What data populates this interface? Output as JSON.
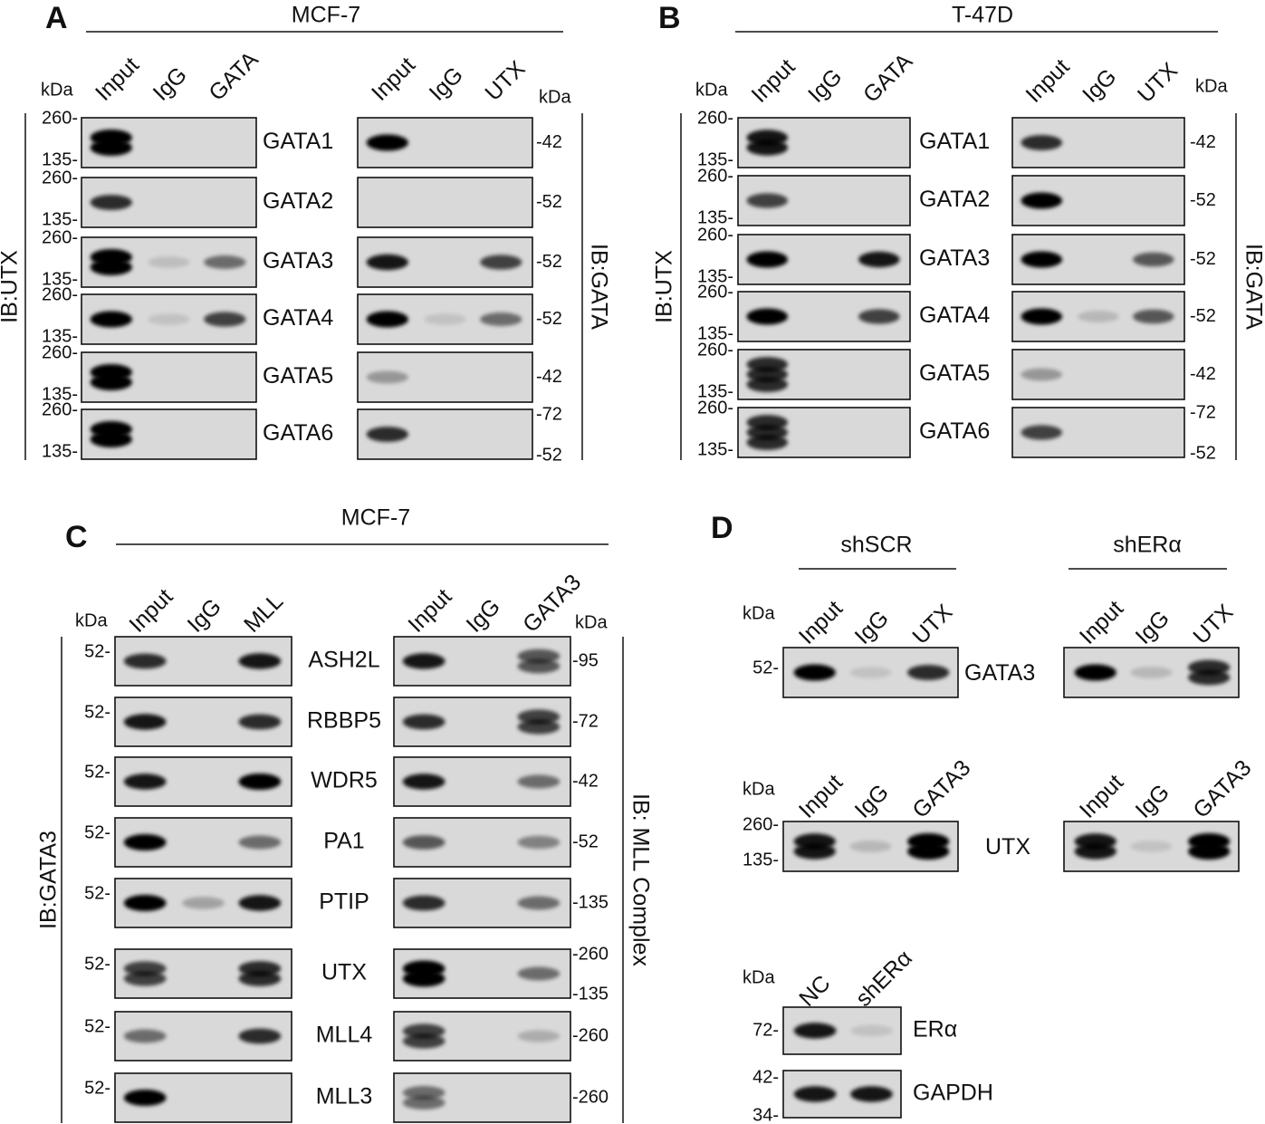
{
  "panels": [
    {
      "letter": "A",
      "title": "MCF-7",
      "kda": [
        "kDa",
        "kDa"
      ],
      "left_ib": "IB:UTX",
      "right_ib": "IB:GATA",
      "left_lanes": [
        "Input",
        "IgG",
        "GATA"
      ],
      "right_lanes": [
        "Input",
        "IgG",
        "UTX"
      ],
      "rows": [
        {
          "label": "GATA1",
          "left_markers": [
            "260-",
            "135-"
          ],
          "right_markers": [
            "-42"
          ]
        },
        {
          "label": "GATA2",
          "left_markers": [
            "260-",
            "135-"
          ],
          "right_markers": [
            "-52"
          ]
        },
        {
          "label": "GATA3",
          "left_markers": [
            "260-",
            "135-"
          ],
          "right_markers": [
            "-52"
          ]
        },
        {
          "label": "GATA4",
          "left_markers": [
            "260-",
            "135-"
          ],
          "right_markers": [
            "-52"
          ]
        },
        {
          "label": "GATA5",
          "left_markers": [
            "260-",
            "135-"
          ],
          "right_markers": [
            "-42"
          ]
        },
        {
          "label": "GATA6",
          "left_markers": [
            "260-",
            "135-"
          ],
          "right_markers": [
            "-72",
            "-52"
          ]
        }
      ]
    },
    {
      "letter": "B",
      "title": "T-47D",
      "kda": [
        "kDa",
        "kDa"
      ],
      "left_ib": "IB:UTX",
      "right_ib": "IB:GATA",
      "left_lanes": [
        "Input",
        "IgG",
        "GATA"
      ],
      "right_lanes": [
        "Input",
        "IgG",
        "UTX"
      ],
      "rows": [
        {
          "label": "GATA1",
          "left_markers": [
            "260-",
            "135-"
          ],
          "right_markers": [
            "-42"
          ]
        },
        {
          "label": "GATA2",
          "left_markers": [
            "260-",
            "135-"
          ],
          "right_markers": [
            "-52"
          ]
        },
        {
          "label": "GATA3",
          "left_markers": [
            "260-",
            "135-"
          ],
          "right_markers": [
            "-52"
          ]
        },
        {
          "label": "GATA4",
          "left_markers": [
            "260-",
            "135-"
          ],
          "right_markers": [
            "-52"
          ]
        },
        {
          "label": "GATA5",
          "left_markers": [
            "260-",
            "135-"
          ],
          "right_markers": [
            "-42"
          ]
        },
        {
          "label": "GATA6",
          "left_markers": [
            "260-",
            "135-"
          ],
          "right_markers": [
            "-72",
            "-52"
          ]
        }
      ]
    },
    {
      "letter": "C",
      "title": "MCF-7",
      "kda": [
        "kDa",
        "kDa"
      ],
      "left_ib": "IB:GATA3",
      "right_ib": "IB: MLL Complex",
      "left_lanes": [
        "Input",
        "IgG",
        "MLL"
      ],
      "right_lanes": [
        "Input",
        "IgG",
        "GATA3"
      ],
      "rows": [
        {
          "label": "ASH2L",
          "left_markers": [
            "52-"
          ],
          "right_markers": [
            "-95"
          ]
        },
        {
          "label": "RBBP5",
          "left_markers": [
            "52-"
          ],
          "right_markers": [
            "-72"
          ]
        },
        {
          "label": "WDR5",
          "left_markers": [
            "52-"
          ],
          "right_markers": [
            "-42"
          ]
        },
        {
          "label": "PA1",
          "left_markers": [
            "52-"
          ],
          "right_markers": [
            "-52"
          ]
        },
        {
          "label": "PTIP",
          "left_markers": [
            "52-"
          ],
          "right_markers": [
            "-135"
          ]
        },
        {
          "label": "UTX",
          "left_markers": [
            "52-"
          ],
          "right_markers": [
            "-260",
            "-135"
          ]
        },
        {
          "label": "MLL4",
          "left_markers": [
            "52-"
          ],
          "right_markers": [
            "-260"
          ]
        },
        {
          "label": "MLL3",
          "left_markers": [
            "52-"
          ],
          "right_markers": [
            "-260"
          ]
        }
      ]
    },
    {
      "letter": "D",
      "groups": [
        "shSCR",
        "shERα"
      ],
      "blots": [
        {
          "kda": "kDa",
          "left_lanes": [
            "Input",
            "IgG",
            "UTX"
          ],
          "right_lanes": [
            "Input",
            "IgG",
            "UTX"
          ],
          "label": "GATA3",
          "markers": [
            "52-"
          ]
        },
        {
          "kda": "kDa",
          "left_lanes": [
            "Input",
            "IgG",
            "GATA3"
          ],
          "right_lanes": [
            "Input",
            "IgG",
            "GATA3"
          ],
          "label": "UTX",
          "markers": [
            "260-",
            "135-"
          ]
        }
      ],
      "knockdown": {
        "kda": "kDa",
        "lanes": [
          "NC",
          "shERα"
        ],
        "rows": [
          {
            "label": "ERα",
            "markers": [
              "72-"
            ]
          },
          {
            "label": "GAPDH",
            "markers": [
              "42-",
              "34-"
            ]
          }
        ]
      }
    }
  ]
}
